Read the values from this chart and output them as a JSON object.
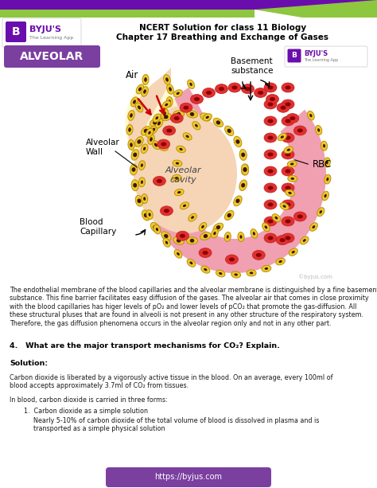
{
  "header_bar_color": "#6a0dad",
  "header_green_color": "#8dc63f",
  "header_title_line1": "NCERT Solution for class 11 Biology",
  "header_title_line2": "Chapter 17 Breathing and Exchange of Gases",
  "alveolar_label": "ALVEOLAR",
  "alveolar_label_bg": "#7b3fa0",
  "para1": "The endothelial membrane of the blood capillaries and the alveolar membrane is distinguished by a fine basement\nsubstance. This fine barrier facilitates easy diffusion of the gases. The alveolar air that comes in close proximity\nwith the blood capillaries has higer levels of pO₂ and lower levels of pCO₂ that promote the gas-diffusion. All\nthese structural pluses that are found in alveoli is not present in any other structure of the respiratory system.\nTherefore, the gas diffusion phenomena occurs in the alveolar region only and not in any other part.",
  "question": "4.   What are the major transport mechanisms for CO₂? Explain.",
  "solution_label": "Solution:",
  "para2": "Carbon dioxide is liberated by a vigorously active tissue in the blood. On an average, every 100ml of\nblood accepts approximately 3.7ml of CO₂ from tissues.",
  "para3": "In blood, carbon dioxide is carried in three forms:",
  "list_item1_title": "Carbon dioxide as a simple solution",
  "list_item1_body": "Nearly 5-10% of carbon dioxide of the total volume of blood is dissolved in plasma and is\ntransported as a simple physical solution",
  "footer_text": "https://byjus.com",
  "footer_bg": "#7b3fa0",
  "footer_text_color": "#ffffff",
  "bg_color": "#ffffff",
  "text_color": "#1a1a1a",
  "purple_color": "#6a0dad",
  "yellow_cell": "#f0c830",
  "pink_blood": "#f0a0b0",
  "rbc_red": "#e03030",
  "rbc_dark": "#8b0000",
  "peach_alv": "#f5d5b5",
  "cell_nucleus": "#3a1800"
}
